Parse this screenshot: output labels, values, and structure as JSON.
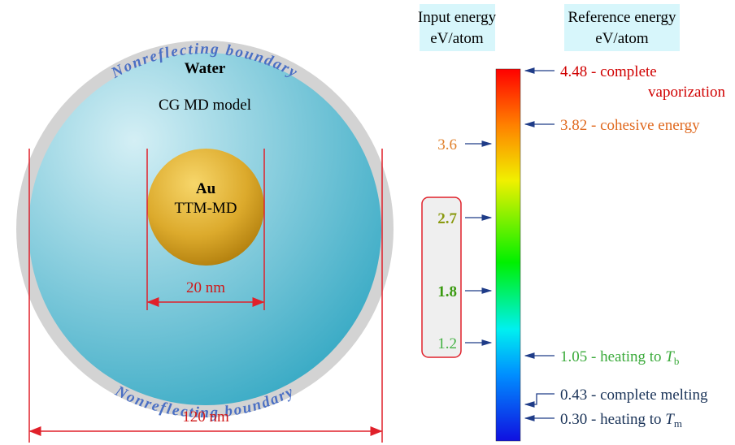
{
  "domain": {
    "boundary_top": "Nonreflecting boundary",
    "boundary_bottom": "Nonreflecting boundary",
    "water": "Water",
    "water_model": "CG MD model",
    "particle": "Au",
    "particle_model": "TTM-MD",
    "particle_size": "20 nm",
    "domain_size": "120 nm"
  },
  "input_header": {
    "line1": "Input energy",
    "line2": "eV/atom"
  },
  "reference_header": {
    "line1": "Reference energy",
    "line2": "eV/atom"
  },
  "inputs": [
    "3.6",
    "2.7",
    "1.8",
    "1.2"
  ],
  "references": [
    {
      "value": "4.48",
      "text": "- complete",
      "text2": "vaporization"
    },
    {
      "value": "3.82",
      "text": "- cohesive energy"
    },
    {
      "value": "1.05",
      "text": "- heating to",
      "symbol": "T",
      "subscript": "b"
    },
    {
      "value": "0.43",
      "text": "- complete melting"
    },
    {
      "value": "0.30",
      "text": "- heating to",
      "symbol": "T",
      "subscript": "m"
    }
  ]
}
